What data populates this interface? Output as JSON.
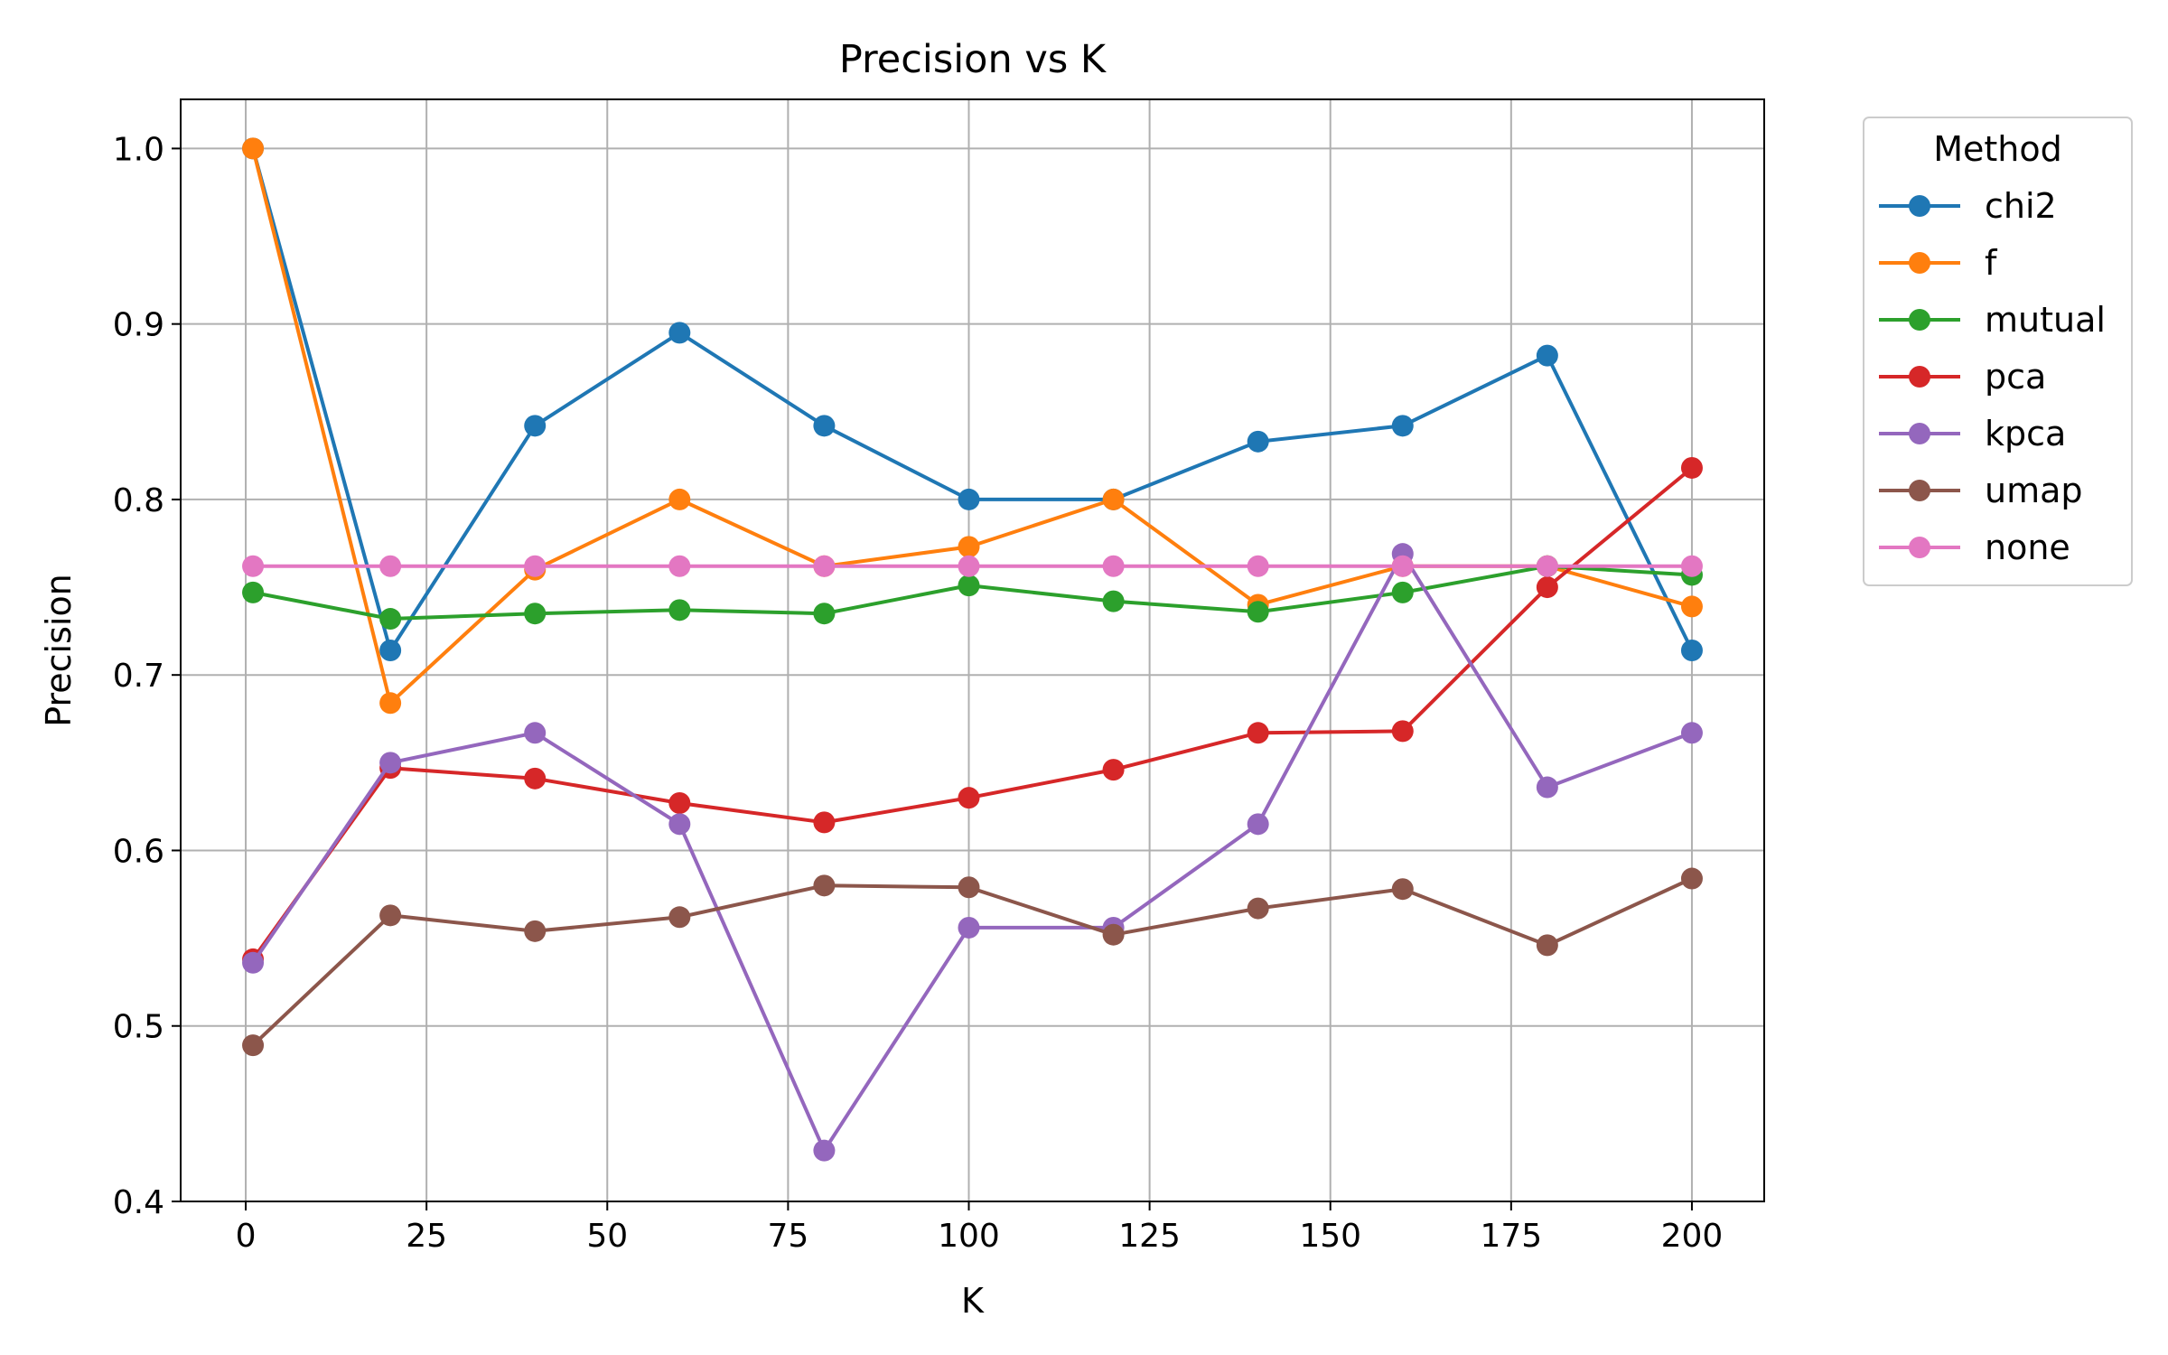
{
  "chart_data": {
    "type": "line",
    "title": "Precision vs K",
    "xlabel": "K",
    "ylabel": "Precision",
    "xlim": [
      -9,
      210
    ],
    "ylim": [
      0.4,
      1.028
    ],
    "xticks": [
      0,
      25,
      50,
      75,
      100,
      125,
      150,
      175,
      200
    ],
    "yticks": [
      0.4,
      0.5,
      0.6,
      0.7,
      0.8,
      0.9,
      1.0
    ],
    "grid": true,
    "legend": {
      "title": "Method",
      "placement": "outside-top-right"
    },
    "x": [
      1,
      20,
      40,
      60,
      80,
      100,
      120,
      140,
      160,
      180,
      200
    ],
    "series": [
      {
        "name": "chi2",
        "color": "#1f77b4",
        "values": [
          1.0,
          0.714,
          0.842,
          0.895,
          0.842,
          0.8,
          0.8,
          0.833,
          0.842,
          0.882,
          0.714
        ]
      },
      {
        "name": "f",
        "color": "#ff7f0e",
        "values": [
          1.0,
          0.684,
          0.76,
          0.8,
          0.762,
          0.773,
          0.8,
          0.74,
          0.762,
          0.762,
          0.739
        ]
      },
      {
        "name": "mutual",
        "color": "#2ca02c",
        "values": [
          0.747,
          0.732,
          0.735,
          0.737,
          0.735,
          0.751,
          0.742,
          0.736,
          0.747,
          0.762,
          0.757
        ]
      },
      {
        "name": "pca",
        "color": "#d62728",
        "values": [
          0.538,
          0.647,
          0.641,
          0.627,
          0.616,
          0.63,
          0.646,
          0.667,
          0.668,
          0.75,
          0.818
        ]
      },
      {
        "name": "kpca",
        "color": "#9467bd",
        "values": [
          0.536,
          0.65,
          0.667,
          0.615,
          0.429,
          0.556,
          0.556,
          0.615,
          0.769,
          0.636,
          0.667
        ]
      },
      {
        "name": "umap",
        "color": "#8c564b",
        "values": [
          0.489,
          0.563,
          0.554,
          0.562,
          0.58,
          0.579,
          0.552,
          0.567,
          0.578,
          0.546,
          0.584
        ]
      },
      {
        "name": "none",
        "color": "#e377c2",
        "values": [
          0.762,
          0.762,
          0.762,
          0.762,
          0.762,
          0.762,
          0.762,
          0.762,
          0.762,
          0.762,
          0.762
        ]
      }
    ]
  }
}
